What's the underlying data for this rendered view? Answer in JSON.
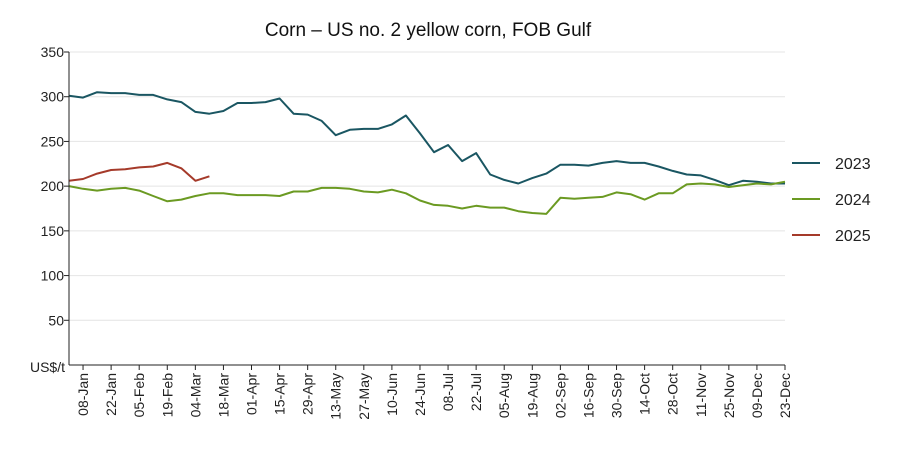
{
  "chart_data": {
    "type": "line",
    "title": "Corn – US no. 2 yellow corn, FOB Gulf",
    "ylabel": "US$/t",
    "ylim": [
      0,
      350
    ],
    "yticks": [
      50,
      100,
      150,
      200,
      250,
      300,
      350
    ],
    "x_ticks": [
      "08-Jan",
      "22-Jan",
      "05-Feb",
      "19-Feb",
      "04-Mar",
      "18-Mar",
      "01-Apr",
      "15-Apr",
      "29-Apr",
      "13-May",
      "27-May",
      "10-Jun",
      "24-Jun",
      "08-Jul",
      "22-Jul",
      "05-Aug",
      "19-Aug",
      "02-Sep",
      "16-Sep",
      "30-Sep",
      "14-Oct",
      "28-Oct",
      "11-Nov",
      "25-Nov",
      "09-Dec",
      "23-Dec"
    ],
    "x_start": "01-Jan",
    "x_step_days": 7,
    "grid": "horizontal",
    "legend_position": "right",
    "series": [
      {
        "name": "2023",
        "color": "#1a5662",
        "values": [
          301,
          299,
          305,
          304,
          304,
          302,
          302,
          297,
          294,
          283,
          281,
          284,
          293,
          293,
          294,
          298,
          281,
          280,
          273,
          257,
          263,
          264,
          264,
          269,
          279,
          259,
          238,
          246,
          228,
          237,
          213,
          207,
          203,
          209,
          214,
          224,
          224,
          223,
          226,
          228,
          226,
          226,
          222,
          217,
          213,
          212,
          207,
          201,
          206,
          205,
          203,
          203
        ]
      },
      {
        "name": "2024",
        "color": "#6b9a22",
        "values": [
          200,
          197,
          195,
          197,
          198,
          195,
          189,
          183,
          185,
          189,
          192,
          192,
          190,
          190,
          190,
          189,
          194,
          194,
          198,
          198,
          197,
          194,
          193,
          196,
          192,
          184,
          179,
          178,
          175,
          178,
          176,
          176,
          172,
          170,
          169,
          187,
          186,
          187,
          188,
          193,
          191,
          185,
          192,
          192,
          202,
          203,
          202,
          199,
          201,
          203,
          202,
          205
        ]
      },
      {
        "name": "2025",
        "color": "#a53a2a",
        "values": [
          206,
          208,
          214,
          218,
          219,
          221,
          222,
          226,
          220,
          206,
          211
        ]
      }
    ]
  }
}
